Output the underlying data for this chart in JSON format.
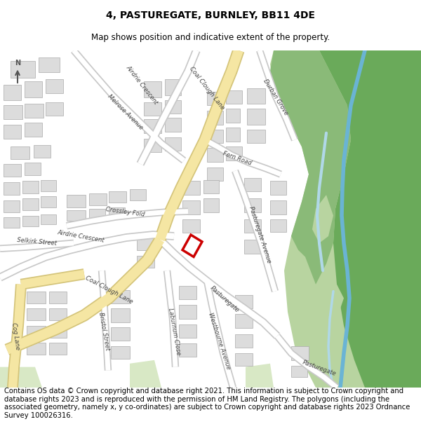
{
  "title_line1": "4, PASTUREGATE, BURNLEY, BB11 4DE",
  "title_line2": "Map shows position and indicative extent of the property.",
  "footer_text": "Contains OS data © Crown copyright and database right 2021. This information is subject to Crown copyright and database rights 2023 and is reproduced with the permission of HM Land Registry. The polygons (including the associated geometry, namely x, y co-ordinates) are subject to Crown copyright and database rights 2023 Ordnance Survey 100026316.",
  "bg_color": "#f0f0f0",
  "road_yellow": "#f5e6a3",
  "road_yellow_outline": "#d4c47a",
  "road_white": "#ffffff",
  "road_white_outline": "#c8c8c8",
  "green_dark": "#6aaa5a",
  "green_med": "#8aba78",
  "green_light": "#b8d4a0",
  "green_pale": "#c8ddb0",
  "green_very_pale": "#d8e8c5",
  "water_blue": "#6ab4d4",
  "water_light": "#b0d8e8",
  "building_fill": "#dcdcdc",
  "building_outline": "#aaaaaa",
  "property_color": "#cc0000",
  "text_color": "#444444",
  "title_fontsize": 10,
  "subtitle_fontsize": 8.5,
  "footer_fontsize": 7.2
}
